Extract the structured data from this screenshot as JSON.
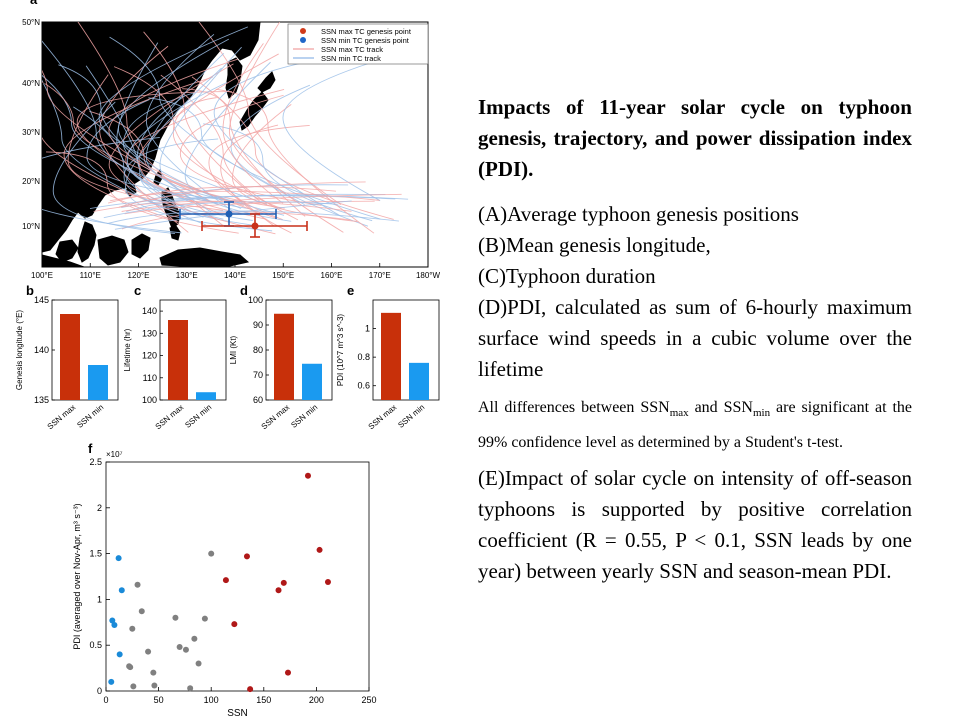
{
  "map": {
    "panel_label": "a",
    "lat_ticks": [
      "50°N",
      "40°N",
      "30°N",
      "20°N",
      "10°N"
    ],
    "lon_ticks": [
      "100°E",
      "110°E",
      "120°E",
      "130°E",
      "140°E",
      "150°E",
      "160°E",
      "170°E",
      "180°W"
    ],
    "legend": [
      {
        "label": "SSN max TC genesis point",
        "color": "#d03a1a",
        "kind": "dot"
      },
      {
        "label": "SSN min TC genesis point",
        "color": "#1f66c8",
        "kind": "dot"
      },
      {
        "label": "SSN max TC track",
        "color": "#f0a0a0",
        "kind": "line"
      },
      {
        "label": "SSN min TC track",
        "color": "#90b8e8",
        "kind": "line"
      }
    ],
    "colors": {
      "land": "#000000",
      "max": "#c8301a",
      "min": "#1f5fb4"
    }
  },
  "bar_panels": [
    {
      "label": "b",
      "ylabel": "Genesis longitude (°E)",
      "yticks": [
        "145",
        "140",
        "135"
      ]
    },
    {
      "label": "c",
      "ylabel": "Lifetime (hr)",
      "yticks": [
        "140",
        "130",
        "120",
        "110",
        "100"
      ]
    },
    {
      "label": "d",
      "ylabel": "LMI (Kt)",
      "yticks": [
        "100",
        "90",
        "80",
        "70",
        "60"
      ]
    },
    {
      "label": "e",
      "ylabel": "PDI (10^7 m^3 s^-3)",
      "yticks": [
        "1",
        "0.8",
        "0.6"
      ]
    }
  ],
  "bar_categories": [
    "SSN max",
    "SSN min"
  ],
  "scatter": {
    "panel_label": "f",
    "multiplier": "×10⁷",
    "xlabel": "SSN",
    "ylabel": "PDI (averaged over Nov-Apr, m³ s⁻³)",
    "xticks": [
      "0",
      "50",
      "100",
      "150",
      "200",
      "250"
    ],
    "yticks": [
      "2.5",
      "2",
      "1.5",
      "1",
      "0.5",
      "0"
    ]
  },
  "chart_data": [
    {
      "type": "bar",
      "panel": "b",
      "categories": [
        "SSN max",
        "SSN min"
      ],
      "values": [
        143.6,
        138.5
      ],
      "ylabel": "Genesis longitude (°E)",
      "ylim": [
        135,
        145
      ],
      "colors": [
        "#c8300a",
        "#1a9af0"
      ]
    },
    {
      "type": "bar",
      "panel": "c",
      "categories": [
        "SSN max",
        "SSN min"
      ],
      "values": [
        136,
        103.5
      ],
      "ylabel": "Lifetime (hr)",
      "ylim": [
        100,
        145
      ],
      "colors": [
        "#c8300a",
        "#1a9af0"
      ]
    },
    {
      "type": "bar",
      "panel": "d",
      "categories": [
        "SSN max",
        "SSN min"
      ],
      "values": [
        94.5,
        74.5
      ],
      "ylabel": "LMI (Kt)",
      "ylim": [
        60,
        100
      ],
      "colors": [
        "#c8300a",
        "#1a9af0"
      ]
    },
    {
      "type": "bar",
      "panel": "e",
      "categories": [
        "SSN max",
        "SSN min"
      ],
      "values": [
        1.11,
        0.76
      ],
      "ylabel": "PDI (10^7 m^3 s^-3)",
      "ylim": [
        0.5,
        1.2
      ],
      "colors": [
        "#c8300a",
        "#1a9af0"
      ]
    },
    {
      "type": "scatter",
      "panel": "f",
      "xlabel": "SSN",
      "ylabel": "PDI (averaged over Nov-Apr, m³ s⁻³)",
      "xlim": [
        0,
        250
      ],
      "ylim": [
        0,
        2.5
      ],
      "y_multiplier": "1e7",
      "series": [
        {
          "color": "#1a8ad8",
          "points": [
            [
              5,
              0.1
            ],
            [
              6,
              0.77
            ],
            [
              8,
              0.72
            ],
            [
              12,
              1.45
            ],
            [
              13,
              0.4
            ],
            [
              15,
              1.1
            ]
          ]
        },
        {
          "color": "#808080",
          "points": [
            [
              22,
              0.27
            ],
            [
              23,
              0.26
            ],
            [
              25,
              0.68
            ],
            [
              26,
              0.05
            ],
            [
              30,
              1.16
            ],
            [
              34,
              0.87
            ],
            [
              40,
              0.43
            ],
            [
              45,
              0.2
            ],
            [
              46,
              0.06
            ],
            [
              66,
              0.8
            ],
            [
              70,
              0.48
            ],
            [
              76,
              0.45
            ],
            [
              80,
              0.03
            ],
            [
              84,
              0.57
            ],
            [
              88,
              0.3
            ],
            [
              94,
              0.79
            ],
            [
              100,
              1.5
            ]
          ]
        },
        {
          "color": "#b01818",
          "points": [
            [
              114,
              1.21
            ],
            [
              122,
              0.73
            ],
            [
              134,
              1.47
            ],
            [
              137,
              0.02
            ],
            [
              164,
              1.1
            ],
            [
              169,
              1.18
            ],
            [
              173,
              0.2
            ],
            [
              192,
              2.35
            ],
            [
              203,
              1.54
            ],
            [
              211,
              1.19
            ]
          ]
        }
      ]
    }
  ],
  "text": {
    "title": "Impacts of 11-year solar cycle on typhoon genesis, trajectory, and power dissipation index (PDI).",
    "items": [
      "(A)Average typhoon genesis positions",
      "(B)Mean genesis longitude,",
      "(C)Typhoon duration",
      "(D)PDI, calculated as sum of 6-hourly maximum surface wind speeds in a cubic volume over the lifetime"
    ],
    "note_pre": "All differences between SSN",
    "note_sub1": "max",
    "note_mid": " and SSN",
    "note_sub2": "min",
    "note_post": " are significant at the 99% confidence level as determined by a Student's t-test.",
    "item_e": "(E)Impact of solar cycle on intensity of off-season typhoons is supported by positive correlation coefficient (R = 0.55, P < 0.1, SSN leads by one year) between yearly SSN and season-mean PDI."
  }
}
